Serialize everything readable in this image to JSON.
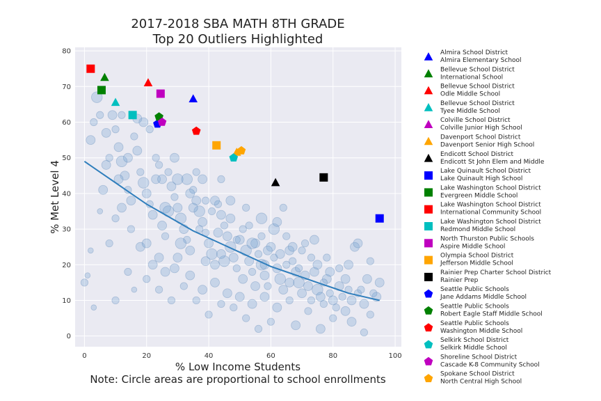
{
  "chart_data": {
    "type": "scatter",
    "title": "2017-2018 SBA MATH 8TH GRADE",
    "subtitle": "Top 20 Outliers Highlighted",
    "xlabel": "% Low Income Students",
    "ylabel": "% Met Level 4",
    "note": "Note: Circle areas are proportional to school enrollments",
    "xlim": [
      -3,
      102
    ],
    "ylim": [
      -3,
      81
    ],
    "xticks": [
      "0",
      "20",
      "40",
      "60",
      "80",
      "100"
    ],
    "yticks": [
      "0",
      "10",
      "20",
      "30",
      "40",
      "50",
      "60",
      "70",
      "80"
    ],
    "grid": true,
    "legend_position": "right outside",
    "trend_line": {
      "color": "#2f7ebc",
      "x": [
        0,
        5,
        10,
        15,
        20,
        25,
        30,
        35,
        40,
        45,
        50,
        55,
        60,
        65,
        70,
        75,
        80,
        85,
        90,
        95
      ],
      "y": [
        49,
        46,
        43,
        40,
        37,
        34.5,
        32,
        29.5,
        27.5,
        25.5,
        23.5,
        21.5,
        19.5,
        18,
        16.5,
        15,
        13.5,
        12,
        11,
        10
      ]
    },
    "background_schools": {
      "color": "#7aa5d2",
      "points": [
        [
          2,
          55,
          5
        ],
        [
          3,
          60,
          4
        ],
        [
          5,
          62,
          4
        ],
        [
          4,
          67,
          6
        ],
        [
          7,
          48,
          5
        ],
        [
          8,
          50,
          4
        ],
        [
          9,
          62,
          5
        ],
        [
          10,
          58,
          4
        ],
        [
          11,
          53,
          5
        ],
        [
          12,
          49,
          6
        ],
        [
          13,
          45,
          5
        ],
        [
          14,
          41,
          4
        ],
        [
          15,
          38,
          5
        ],
        [
          16,
          56,
          4
        ],
        [
          17,
          52,
          5
        ],
        [
          18,
          46,
          4
        ],
        [
          19,
          43,
          6
        ],
        [
          20,
          40,
          5
        ],
        [
          21,
          37,
          4
        ],
        [
          22,
          34,
          5
        ],
        [
          23,
          44,
          5
        ],
        [
          24,
          48,
          4
        ],
        [
          25,
          31,
          5
        ],
        [
          26,
          28,
          4
        ],
        [
          27,
          35,
          6
        ],
        [
          28,
          42,
          5
        ],
        [
          29,
          39,
          4
        ],
        [
          30,
          36,
          5
        ],
        [
          31,
          33,
          6
        ],
        [
          32,
          30,
          5
        ],
        [
          33,
          27,
          4
        ],
        [
          34,
          24,
          5
        ],
        [
          35,
          41,
          4
        ],
        [
          36,
          38,
          5
        ],
        [
          37,
          35,
          6
        ],
        [
          38,
          32,
          5
        ],
        [
          39,
          29,
          4
        ],
        [
          40,
          26,
          5
        ],
        [
          41,
          23,
          6
        ],
        [
          42,
          20,
          5
        ],
        [
          43,
          37,
          4
        ],
        [
          44,
          34,
          5
        ],
        [
          45,
          31,
          4
        ],
        [
          46,
          28,
          5
        ],
        [
          47,
          25,
          6
        ],
        [
          48,
          22,
          5
        ],
        [
          49,
          19,
          4
        ],
        [
          50,
          27,
          5
        ],
        [
          51,
          30,
          4
        ],
        [
          52,
          24,
          6
        ],
        [
          53,
          21,
          5
        ],
        [
          54,
          18,
          4
        ],
        [
          55,
          26,
          5
        ],
        [
          56,
          23,
          4
        ],
        [
          57,
          20,
          6
        ],
        [
          58,
          17,
          5
        ],
        [
          59,
          14,
          4
        ],
        [
          60,
          25,
          5
        ],
        [
          61,
          22,
          4
        ],
        [
          62,
          19,
          5
        ],
        [
          63,
          16,
          6
        ],
        [
          64,
          13,
          5
        ],
        [
          65,
          28,
          4
        ],
        [
          66,
          24,
          5
        ],
        [
          67,
          21,
          4
        ],
        [
          68,
          18,
          5
        ],
        [
          69,
          15,
          6
        ],
        [
          70,
          12,
          5
        ],
        [
          71,
          26,
          4
        ],
        [
          72,
          14,
          5
        ],
        [
          73,
          10,
          4
        ],
        [
          74,
          18,
          5
        ],
        [
          75,
          13,
          6
        ],
        [
          76,
          11,
          5
        ],
        [
          77,
          9,
          4
        ],
        [
          78,
          16,
          5
        ],
        [
          79,
          12,
          4
        ],
        [
          80,
          10,
          5
        ],
        [
          81,
          8,
          4
        ],
        [
          82,
          14,
          5
        ],
        [
          83,
          11,
          4
        ],
        [
          84,
          7,
          5
        ],
        [
          85,
          13,
          4
        ],
        [
          86,
          10,
          5
        ],
        [
          88,
          12,
          4
        ],
        [
          90,
          9,
          5
        ],
        [
          92,
          6,
          4
        ],
        [
          94,
          11,
          5
        ],
        [
          6,
          41,
          5
        ],
        [
          10,
          10,
          4
        ],
        [
          12,
          36,
          5
        ],
        [
          15,
          30,
          4
        ],
        [
          18,
          25,
          5
        ],
        [
          20,
          16,
          4
        ],
        [
          22,
          20,
          5
        ],
        [
          24,
          13,
          4
        ],
        [
          26,
          18,
          5
        ],
        [
          28,
          10,
          4
        ],
        [
          30,
          22,
          5
        ],
        [
          32,
          14,
          4
        ],
        [
          34,
          17,
          5
        ],
        [
          36,
          10,
          4
        ],
        [
          38,
          13,
          5
        ],
        [
          40,
          6,
          4
        ],
        [
          42,
          15,
          5
        ],
        [
          44,
          9,
          4
        ],
        [
          46,
          12,
          5
        ],
        [
          48,
          8,
          4
        ],
        [
          50,
          11,
          5
        ],
        [
          52,
          5,
          4
        ],
        [
          54,
          9,
          5
        ],
        [
          56,
          2,
          4
        ],
        [
          58,
          11,
          5
        ],
        [
          60,
          4,
          4
        ],
        [
          62,
          8,
          5
        ],
        [
          66,
          10,
          4
        ],
        [
          68,
          3,
          5
        ],
        [
          72,
          7,
          4
        ],
        [
          76,
          2,
          5
        ],
        [
          80,
          5,
          4
        ],
        [
          86,
          4,
          5
        ],
        [
          90,
          1,
          4
        ],
        [
          95,
          15,
          5
        ],
        [
          1,
          17,
          3
        ],
        [
          2,
          24,
          3
        ],
        [
          5,
          35,
          3
        ],
        [
          8,
          26,
          4
        ],
        [
          10,
          33,
          4
        ],
        [
          14,
          18,
          4
        ],
        [
          16,
          13,
          3
        ],
        [
          20,
          26,
          5
        ],
        [
          23,
          50,
          4
        ],
        [
          25,
          44,
          5
        ],
        [
          27,
          46,
          4
        ],
        [
          29,
          50,
          5
        ],
        [
          33,
          44,
          6
        ],
        [
          35,
          36,
          5
        ],
        [
          37,
          30,
          4
        ],
        [
          39,
          21,
          5
        ],
        [
          41,
          35,
          4
        ],
        [
          43,
          29,
          5
        ],
        [
          45,
          21,
          6
        ],
        [
          47,
          33,
          5
        ],
        [
          49,
          27,
          4
        ],
        [
          51,
          16,
          5
        ],
        [
          53,
          31,
          4
        ],
        [
          55,
          14,
          5
        ],
        [
          57,
          28,
          4
        ],
        [
          59,
          24,
          5
        ],
        [
          61,
          30,
          6
        ],
        [
          63,
          23,
          5
        ],
        [
          65,
          20,
          4
        ],
        [
          67,
          25,
          5
        ],
        [
          69,
          19,
          4
        ],
        [
          71,
          17,
          5
        ],
        [
          73,
          22,
          4
        ],
        [
          75,
          20,
          5
        ],
        [
          77,
          15,
          4
        ],
        [
          79,
          18,
          5
        ],
        [
          82,
          19,
          4
        ],
        [
          84,
          16,
          5
        ],
        [
          87,
          25,
          5
        ],
        [
          89,
          13,
          4
        ],
        [
          91,
          16,
          5
        ],
        [
          93,
          12,
          4
        ],
        [
          0,
          15,
          4
        ],
        [
          3,
          8,
          3
        ],
        [
          19,
          60,
          5
        ],
        [
          21,
          58,
          4
        ],
        [
          17,
          61,
          5
        ],
        [
          12,
          62,
          4
        ],
        [
          14,
          50,
          5
        ],
        [
          7,
          57,
          5
        ],
        [
          11,
          44,
          5
        ],
        [
          30,
          44,
          6
        ],
        [
          34,
          40,
          5
        ],
        [
          38,
          44,
          5
        ],
        [
          36,
          46,
          4
        ],
        [
          42,
          38,
          5
        ],
        [
          47,
          38,
          5
        ],
        [
          52,
          36,
          4
        ],
        [
          57,
          33,
          6
        ],
        [
          62,
          32,
          5
        ],
        [
          64,
          36,
          4
        ],
        [
          70,
          24,
          4
        ],
        [
          74,
          27,
          5
        ],
        [
          78,
          22,
          4
        ],
        [
          85,
          20,
          5
        ],
        [
          88,
          26,
          5
        ],
        [
          92,
          21,
          4
        ],
        [
          66,
          15,
          5
        ],
        [
          58,
          20,
          5
        ],
        [
          54,
          26,
          6
        ],
        [
          44,
          23,
          5
        ],
        [
          39,
          38,
          4
        ],
        [
          29,
          19,
          5
        ],
        [
          26,
          36,
          6
        ],
        [
          24,
          22,
          5
        ],
        [
          31,
          26,
          6
        ],
        [
          44,
          44,
          4
        ]
      ]
    },
    "highlighted": [
      {
        "district": "Almira School District",
        "school": "Almira Elementary School",
        "x": 35,
        "y": 66.5,
        "color": "#0000ff",
        "marker": "triangle"
      },
      {
        "district": "Bellevue School District",
        "school": "International School",
        "x": 6.5,
        "y": 72.5,
        "color": "#008000",
        "marker": "triangle"
      },
      {
        "district": "Bellevue School District",
        "school": "Odle Middle School",
        "x": 20.5,
        "y": 71,
        "color": "#ff0000",
        "marker": "triangle"
      },
      {
        "district": "Bellevue School District",
        "school": "Tyee Middle School",
        "x": 10,
        "y": 65.5,
        "color": "#00bfbf",
        "marker": "triangle"
      },
      {
        "district": "Colville School District",
        "school": "Colville Junior High School",
        "x": 24,
        "y": 60,
        "color": "#bf00bf",
        "marker": "triangle"
      },
      {
        "district": "Davenport School District",
        "school": "Davenport Senior High School",
        "x": 49,
        "y": 51.5,
        "color": "#ffa500",
        "marker": "triangle"
      },
      {
        "district": "Endicott School District",
        "school": "Endicott St John Elem and Middle",
        "x": 61.5,
        "y": 43,
        "color": "#000000",
        "marker": "triangle"
      },
      {
        "district": "Lake Quinault School District",
        "school": "Lake Quinault High School",
        "x": 95,
        "y": 33,
        "color": "#0000ff",
        "marker": "square"
      },
      {
        "district": "Lake Washington School District",
        "school": "Evergreen Middle School",
        "x": 5.5,
        "y": 69,
        "color": "#008000",
        "marker": "square"
      },
      {
        "district": "Lake Washington School District",
        "school": "International Community School",
        "x": 2,
        "y": 75,
        "color": "#ff0000",
        "marker": "square"
      },
      {
        "district": "Lake Washington School District",
        "school": "Redmond Middle School",
        "x": 15.5,
        "y": 62,
        "color": "#00bfbf",
        "marker": "square"
      },
      {
        "district": "North Thurston Public Schools",
        "school": "Aspire Middle School",
        "x": 24.5,
        "y": 68,
        "color": "#bf00bf",
        "marker": "square"
      },
      {
        "district": "Olympia School District",
        "school": "Jefferson Middle School",
        "x": 42.5,
        "y": 53.5,
        "color": "#ffa500",
        "marker": "square"
      },
      {
        "district": "Rainier Prep Charter School District",
        "school": "Rainier Prep",
        "x": 77,
        "y": 44.5,
        "color": "#000000",
        "marker": "square"
      },
      {
        "district": "Seattle Public Schools",
        "school": "Jane Addams Middle School",
        "x": 23.5,
        "y": 59.5,
        "color": "#0000ff",
        "marker": "pentagon"
      },
      {
        "district": "Seattle Public Schools",
        "school": "Robert Eagle Staff Middle School",
        "x": 24,
        "y": 61.5,
        "color": "#008000",
        "marker": "pentagon"
      },
      {
        "district": "Seattle Public Schools",
        "school": "Washington Middle School",
        "x": 36,
        "y": 57.5,
        "color": "#ff0000",
        "marker": "pentagon"
      },
      {
        "district": "Selkirk School District",
        "school": "Selkirk Middle School",
        "x": 48,
        "y": 50,
        "color": "#00bfbf",
        "marker": "pentagon"
      },
      {
        "district": "Shoreline School District",
        "school": "Cascade K-8 Community School",
        "x": 25,
        "y": 60,
        "color": "#bf00bf",
        "marker": "pentagon"
      },
      {
        "district": "Spokane School District",
        "school": "North Central High School",
        "x": 50.5,
        "y": 52,
        "color": "#ffa500",
        "marker": "pentagon"
      }
    ]
  }
}
